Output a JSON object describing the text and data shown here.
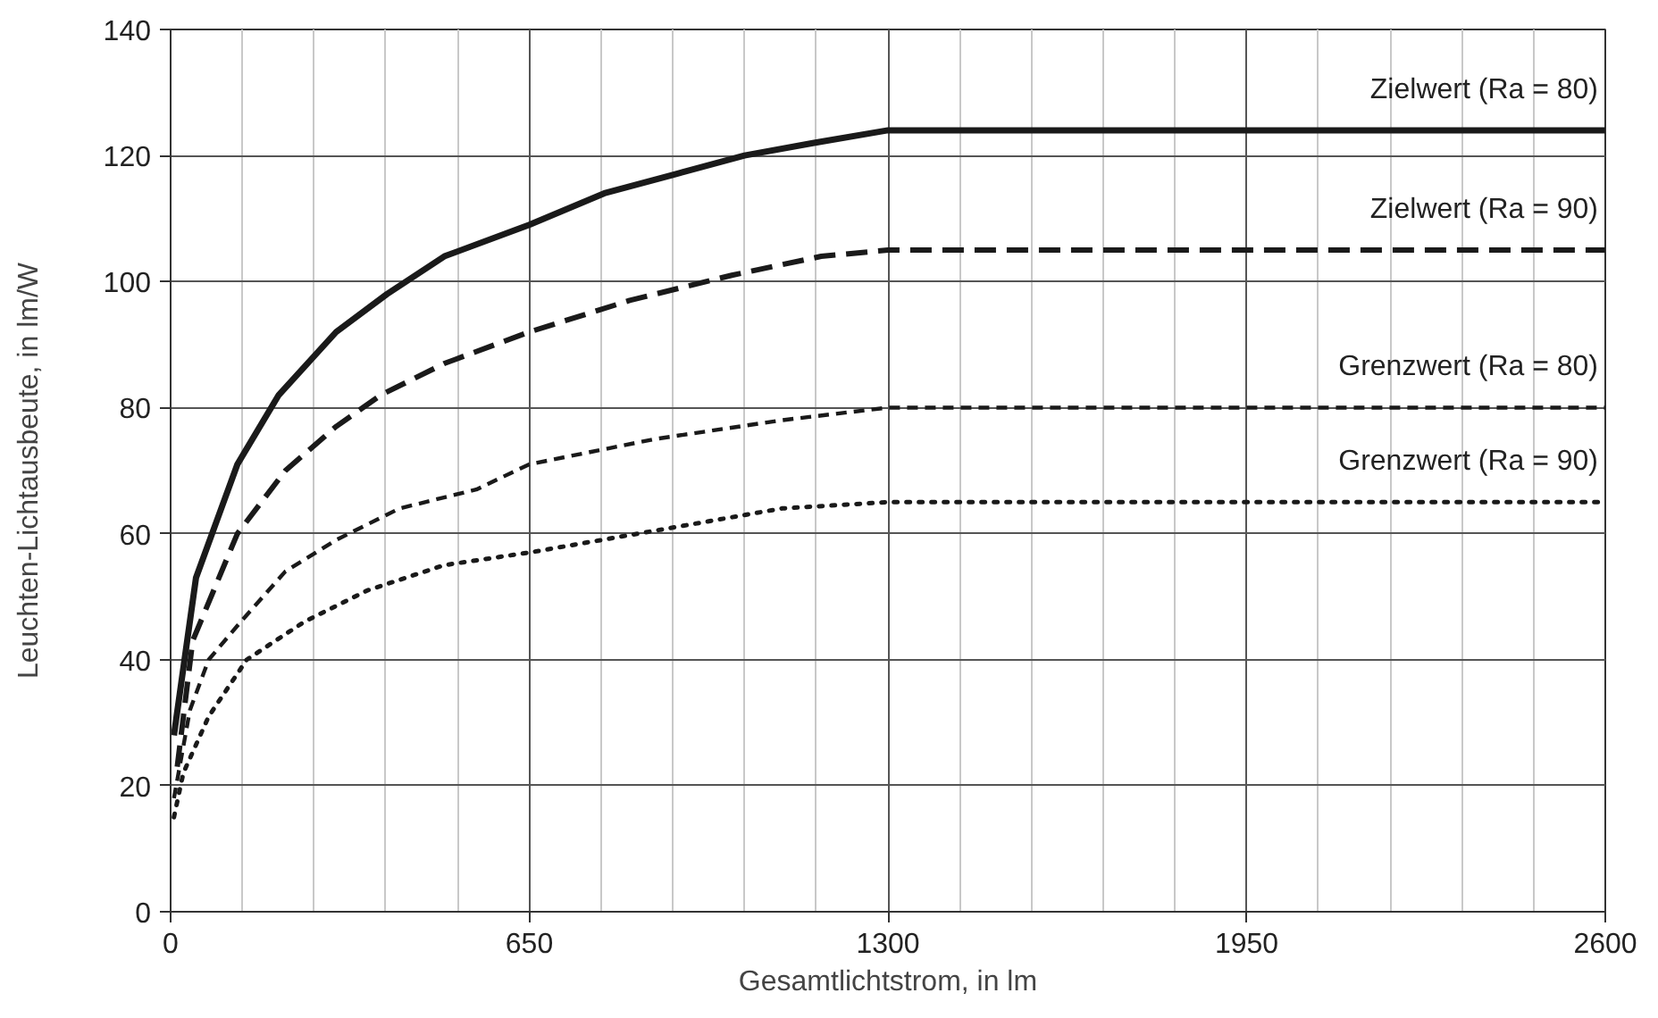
{
  "chart_data": {
    "type": "line",
    "xlabel": "Gesamtlichtstrom, in lm",
    "ylabel": "Leuchten-Lichtausbeute, in lm/W",
    "xlim": [
      0,
      2600
    ],
    "xticks": [
      0,
      650,
      1300,
      1950,
      2600
    ],
    "ylim": [
      0,
      140
    ],
    "yticks": [
      0,
      20,
      40,
      60,
      80,
      100,
      120,
      140
    ],
    "grid": true,
    "marker": "none",
    "series": [
      {
        "name": "Zielwert (Ra = 80)",
        "color": "#1a1a1a",
        "line_style": "solid",
        "x": [
          6,
          46,
          121,
          196,
          300,
          392,
          496,
          650,
          786,
          913,
          1040,
          1166,
          1300,
          2600
        ],
        "values": [
          28,
          53,
          71,
          82,
          92,
          98,
          104,
          109,
          114,
          117,
          120,
          122,
          124,
          124
        ]
      },
      {
        "name": "Zielwert (Ra = 90)",
        "color": "#1a1a1a",
        "line_style": "dashed",
        "x": [
          12,
          40,
          121,
          208,
          300,
          381,
          496,
          650,
          832,
          1017,
          1179,
          1300,
          2600
        ],
        "values": [
          23,
          43,
          60,
          70,
          77,
          82,
          87,
          92,
          97,
          101,
          104,
          105,
          105
        ]
      },
      {
        "name": "Grenzwert (Ra = 80)",
        "color": "#1a1a1a",
        "line_style": "dashed",
        "x": [
          6,
          35,
          69,
          127,
          208,
          300,
          415,
          554,
          650,
          877,
          1108,
          1300,
          2600
        ],
        "values": [
          18,
          32,
          40,
          46,
          54,
          59,
          64,
          67,
          71,
          75,
          78,
          80,
          80
        ]
      },
      {
        "name": "Grenzwert (Ra = 90)",
        "color": "#1a1a1a",
        "line_style": "dotted",
        "x": [
          6,
          23,
          69,
          138,
          242,
          357,
          496,
          650,
          913,
          1108,
          1300,
          2600
        ],
        "values": [
          15,
          22,
          31,
          40,
          46,
          51,
          55,
          57,
          61,
          64,
          65,
          65
        ]
      }
    ]
  }
}
